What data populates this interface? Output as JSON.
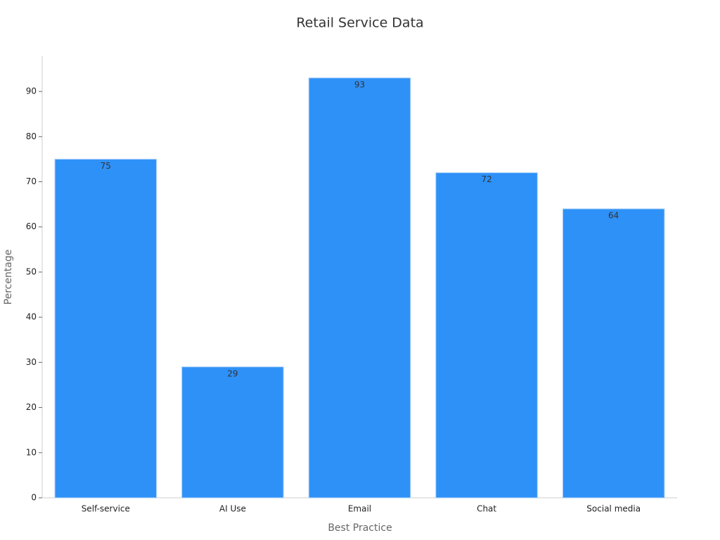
{
  "chart_data": {
    "type": "bar",
    "title": "Retail Service Data",
    "x_label": "Best Practice",
    "y_label": "Percentage",
    "categories": [
      "Self-service",
      "AI Use",
      "Email",
      "Chat",
      "Social media"
    ],
    "values": [
      75,
      29,
      93,
      72,
      64
    ],
    "color": "#2e91f8",
    "ylim": [
      0,
      97.8
    ],
    "yticks": [
      0,
      10,
      20,
      30,
      40,
      50,
      60,
      70,
      80,
      90
    ],
    "grid": false
  }
}
